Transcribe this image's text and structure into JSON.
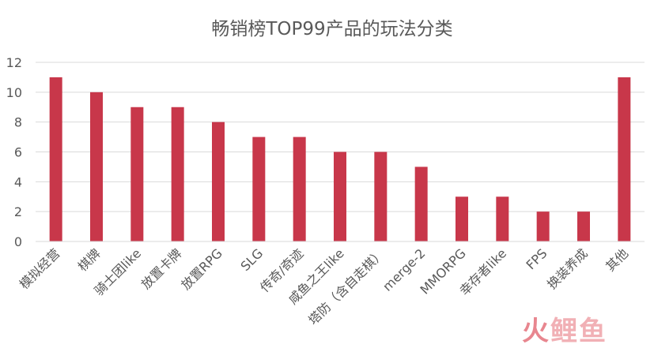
{
  "chart_data": {
    "type": "bar",
    "title": "畅销榜TOP99产品的玩法分类",
    "xlabel": "",
    "ylabel": "",
    "ylim": [
      0,
      12
    ],
    "yticks": [
      0,
      2,
      4,
      6,
      8,
      10,
      12
    ],
    "grid": true,
    "legend": "none",
    "categories": [
      "模拟经营",
      "棋牌",
      "骑士团like",
      "放置卡牌",
      "放置RPG",
      "SLG",
      "传奇/奇迹",
      "咸鱼之王like",
      "塔防（含自走棋）",
      "merge-2",
      "MMORPG",
      "幸存者like",
      "FPS",
      "换装养成",
      "其他"
    ],
    "values": [
      11,
      10,
      9,
      9,
      8,
      7,
      7,
      6,
      6,
      5,
      3,
      3,
      2,
      2,
      11
    ],
    "bar_color": "#c8374a"
  },
  "watermark": {
    "part1": "火",
    "part2": "鲤鱼"
  }
}
